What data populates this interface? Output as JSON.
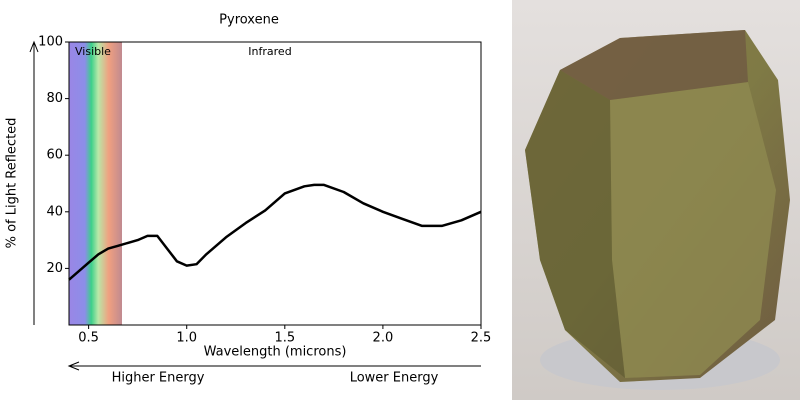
{
  "chart_data": {
    "type": "line",
    "title": "Pyroxene",
    "x_label": "Wavelength (microns)",
    "y_label": "% of Light Reflected",
    "annotations": [
      "Visible",
      "Infrared",
      "Higher Energy",
      "Lower Energy"
    ],
    "x": [
      0.4,
      0.45,
      0.5,
      0.55,
      0.6,
      0.65,
      0.7,
      0.75,
      0.8,
      0.85,
      0.9,
      0.95,
      1.0,
      1.05,
      1.1,
      1.2,
      1.3,
      1.4,
      1.5,
      1.6,
      1.65,
      1.7,
      1.8,
      1.9,
      2.0,
      2.1,
      2.2,
      2.3,
      2.4,
      2.5
    ],
    "values": [
      16,
      19,
      22,
      25,
      27,
      28,
      29,
      30,
      31.5,
      31.5,
      27,
      22.5,
      21,
      21.5,
      25,
      31,
      36,
      40.5,
      46.5,
      49,
      49.5,
      49.5,
      47,
      43,
      40,
      37.5,
      35,
      35,
      37,
      40
    ],
    "color": "#000000",
    "xlim": [
      0.4,
      2.5
    ],
    "ylim": [
      0,
      100
    ],
    "xticks": [
      0.5,
      {
        "value": 1,
        "label": "1.0"
      },
      1.5,
      {
        "value": 2,
        "label": "2.0"
      },
      2.5
    ],
    "yticks": [
      20,
      40,
      60,
      80,
      100
    ]
  }
}
